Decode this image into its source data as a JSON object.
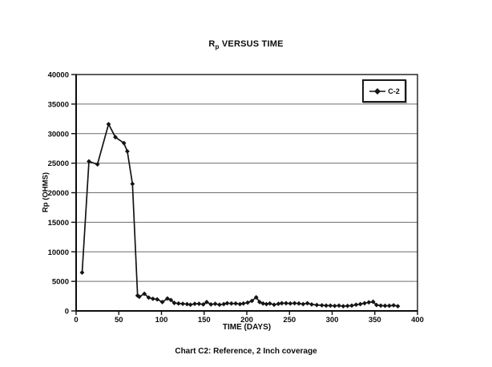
{
  "page": {
    "title_prefix": "R",
    "title_sub": "p",
    "title_suffix": " VERSUS TIME",
    "caption": "Chart C2: Reference, 2 Inch coverage"
  },
  "chart_data": {
    "type": "line",
    "title": "Rp VERSUS TIME",
    "xlabel": "TIME (DAYS)",
    "ylabel": "Rp (OHMS)",
    "xlim": [
      0,
      400
    ],
    "ylim": [
      0,
      40000
    ],
    "xticks": [
      0,
      50,
      100,
      150,
      200,
      250,
      300,
      350,
      400
    ],
    "yticks": [
      0,
      5000,
      10000,
      15000,
      20000,
      25000,
      30000,
      35000,
      40000
    ],
    "grid": "horizontal",
    "line_color": "#141414",
    "grid_color": "#6e6e6e",
    "legend": {
      "position": "top-right",
      "entries": [
        {
          "label": "C-2",
          "marker": "diamond",
          "color": "#141414"
        }
      ]
    },
    "series": [
      {
        "name": "C-2",
        "color": "#141414",
        "marker": "diamond",
        "points": [
          [
            7,
            6500
          ],
          [
            15,
            25300
          ],
          [
            25,
            24800
          ],
          [
            38,
            31600
          ],
          [
            46,
            29400
          ],
          [
            56,
            28400
          ],
          [
            60,
            27000
          ],
          [
            66,
            21500
          ],
          [
            72,
            2600
          ],
          [
            74,
            2400
          ],
          [
            80,
            2900
          ],
          [
            85,
            2250
          ],
          [
            90,
            2050
          ],
          [
            95,
            1950
          ],
          [
            101,
            1500
          ],
          [
            107,
            2100
          ],
          [
            111,
            1850
          ],
          [
            115,
            1350
          ],
          [
            120,
            1250
          ],
          [
            125,
            1200
          ],
          [
            130,
            1150
          ],
          [
            134,
            1050
          ],
          [
            139,
            1200
          ],
          [
            144,
            1200
          ],
          [
            149,
            1100
          ],
          [
            153,
            1500
          ],
          [
            158,
            1100
          ],
          [
            163,
            1200
          ],
          [
            168,
            1050
          ],
          [
            173,
            1150
          ],
          [
            177,
            1300
          ],
          [
            182,
            1250
          ],
          [
            187,
            1250
          ],
          [
            192,
            1150
          ],
          [
            196,
            1250
          ],
          [
            201,
            1400
          ],
          [
            206,
            1700
          ],
          [
            211,
            2300
          ],
          [
            215,
            1500
          ],
          [
            219,
            1250
          ],
          [
            223,
            1150
          ],
          [
            227,
            1250
          ],
          [
            232,
            1050
          ],
          [
            237,
            1200
          ],
          [
            241,
            1300
          ],
          [
            246,
            1300
          ],
          [
            251,
            1250
          ],
          [
            256,
            1300
          ],
          [
            261,
            1250
          ],
          [
            266,
            1150
          ],
          [
            271,
            1300
          ],
          [
            276,
            1100
          ],
          [
            282,
            1000
          ],
          [
            288,
            950
          ],
          [
            293,
            900
          ],
          [
            298,
            900
          ],
          [
            303,
            850
          ],
          [
            308,
            900
          ],
          [
            313,
            800
          ],
          [
            318,
            850
          ],
          [
            323,
            900
          ],
          [
            328,
            1050
          ],
          [
            333,
            1150
          ],
          [
            338,
            1300
          ],
          [
            343,
            1450
          ],
          [
            348,
            1550
          ],
          [
            352,
            1000
          ],
          [
            357,
            900
          ],
          [
            362,
            870
          ],
          [
            367,
            870
          ],
          [
            372,
            950
          ],
          [
            377,
            800
          ]
        ]
      }
    ]
  }
}
